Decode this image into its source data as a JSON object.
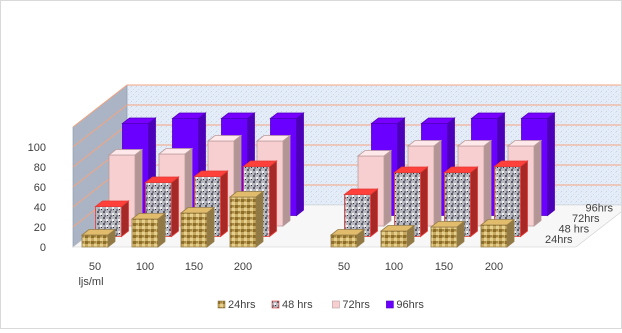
{
  "chart_data": {
    "type": "bar",
    "projection": "3d-column",
    "title": "",
    "xlabel": "",
    "ylabel": "",
    "ylim": [
      0,
      100
    ],
    "yticks": [
      "0",
      "20",
      "40",
      "60",
      "80",
      "100"
    ],
    "groups": [
      {
        "categories": [
          "50",
          "100",
          "150",
          "200"
        ],
        "sublabel": "ljs/ml"
      },
      {
        "categories": [
          "50",
          "100",
          "150",
          "200"
        ],
        "sublabel": ""
      }
    ],
    "depth_labels": [
      "24hrs",
      "48 hrs",
      "72hrs",
      "96hrs"
    ],
    "series": [
      {
        "name": "24hrs",
        "color": "#c9a860",
        "pattern": "tan-mosaic",
        "values": [
          12,
          28,
          34,
          50,
          12,
          16,
          20,
          22
        ]
      },
      {
        "name": "48 hrs",
        "color": "#e53935",
        "pattern": "grey-granite",
        "values": [
          30,
          54,
          60,
          70,
          42,
          64,
          64,
          70
        ]
      },
      {
        "name": "72hrs",
        "color": "#f8cfd0",
        "pattern": "solid",
        "values": [
          71,
          72,
          85,
          85,
          70,
          80,
          80,
          80
        ]
      },
      {
        "name": "96hrs",
        "color": "#6a00ff",
        "pattern": "solid",
        "values": [
          92,
          97,
          97,
          97,
          92,
          92,
          97,
          97
        ]
      }
    ],
    "legend": {
      "position": "bottom",
      "items": [
        "24hrs",
        "48 hrs",
        "72hrs",
        "96hrs"
      ]
    },
    "grid": true
  }
}
